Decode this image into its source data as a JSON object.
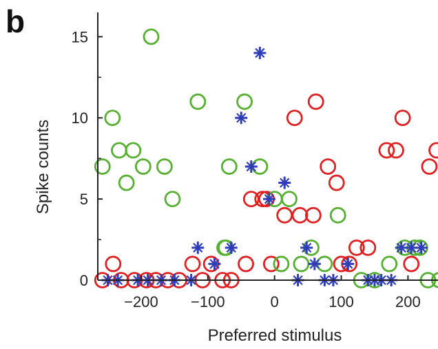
{
  "panel_label": "b",
  "chart_data": {
    "type": "scatter",
    "title": "",
    "xlabel": "Preferred stimulus",
    "ylabel": "Spike counts",
    "xlim": [
      -265,
      245
    ],
    "ylim": [
      0,
      16.5
    ],
    "xticks": [
      -200,
      -100,
      0,
      100,
      200
    ],
    "xtick_labels": [
      "−200",
      "−100",
      "0",
      "100",
      "200"
    ],
    "yticks": [
      0,
      5,
      10,
      15
    ],
    "ytick_labels": [
      "0",
      "5",
      "10",
      "15"
    ],
    "grid": false,
    "legend": "none",
    "series": [
      {
        "marker": "circle-open",
        "color": "#e02020",
        "points": [
          [
            -258,
            0
          ],
          [
            -242,
            1
          ],
          [
            -230,
            0
          ],
          [
            -210,
            0
          ],
          [
            -192,
            0
          ],
          [
            -178,
            0
          ],
          [
            -160,
            0
          ],
          [
            -143,
            0
          ],
          [
            -123,
            1
          ],
          [
            -108,
            0
          ],
          [
            -95,
            1
          ],
          [
            -78,
            0
          ],
          [
            -65,
            0
          ],
          [
            -43,
            1
          ],
          [
            -35,
            5
          ],
          [
            -18,
            5
          ],
          [
            -5,
            1
          ],
          [
            -12,
            5
          ],
          [
            15,
            4
          ],
          [
            30,
            10
          ],
          [
            38,
            4
          ],
          [
            58,
            4
          ],
          [
            62,
            11
          ],
          [
            80,
            7
          ],
          [
            93,
            6
          ],
          [
            100,
            1
          ],
          [
            112,
            1
          ],
          [
            123,
            2
          ],
          [
            140,
            2
          ],
          [
            168,
            8
          ],
          [
            182,
            8
          ],
          [
            192,
            10
          ],
          [
            205,
            1
          ],
          [
            232,
            7
          ],
          [
            243,
            8
          ]
        ]
      },
      {
        "marker": "circle-open",
        "color": "#55b030",
        "points": [
          [
            -258,
            7
          ],
          [
            -243,
            10
          ],
          [
            -233,
            8
          ],
          [
            -222,
            6
          ],
          [
            -212,
            8
          ],
          [
            -197,
            7
          ],
          [
            -185,
            15
          ],
          [
            -165,
            7
          ],
          [
            -153,
            5
          ],
          [
            -115,
            11
          ],
          [
            -75,
            2
          ],
          [
            -73,
            2
          ],
          [
            -68,
            7
          ],
          [
            -45,
            11
          ],
          [
            -22,
            7
          ],
          [
            0,
            5
          ],
          [
            10,
            1
          ],
          [
            22,
            5
          ],
          [
            40,
            1
          ],
          [
            55,
            2
          ],
          [
            75,
            1
          ],
          [
            95,
            4
          ],
          [
            130,
            0
          ],
          [
            150,
            0
          ],
          [
            172,
            1
          ],
          [
            195,
            2
          ],
          [
            210,
            2
          ],
          [
            218,
            2
          ],
          [
            230,
            0
          ],
          [
            247,
            0
          ]
        ]
      },
      {
        "marker": "star",
        "color": "#2f3db8",
        "points": [
          [
            -250,
            0
          ],
          [
            -235,
            0
          ],
          [
            -205,
            0
          ],
          [
            -190,
            0
          ],
          [
            -170,
            0
          ],
          [
            -150,
            0
          ],
          [
            -125,
            0
          ],
          [
            -115,
            2
          ],
          [
            -90,
            1
          ],
          [
            -65,
            2
          ],
          [
            -50,
            10
          ],
          [
            -35,
            7
          ],
          [
            -22,
            14
          ],
          [
            -8,
            5
          ],
          [
            15,
            6
          ],
          [
            35,
            0
          ],
          [
            48,
            2
          ],
          [
            60,
            1
          ],
          [
            75,
            0
          ],
          [
            88,
            0
          ],
          [
            110,
            1
          ],
          [
            140,
            0
          ],
          [
            150,
            0
          ],
          [
            160,
            0
          ],
          [
            175,
            0
          ],
          [
            190,
            2
          ],
          [
            205,
            2
          ],
          [
            220,
            2
          ]
        ]
      }
    ]
  }
}
